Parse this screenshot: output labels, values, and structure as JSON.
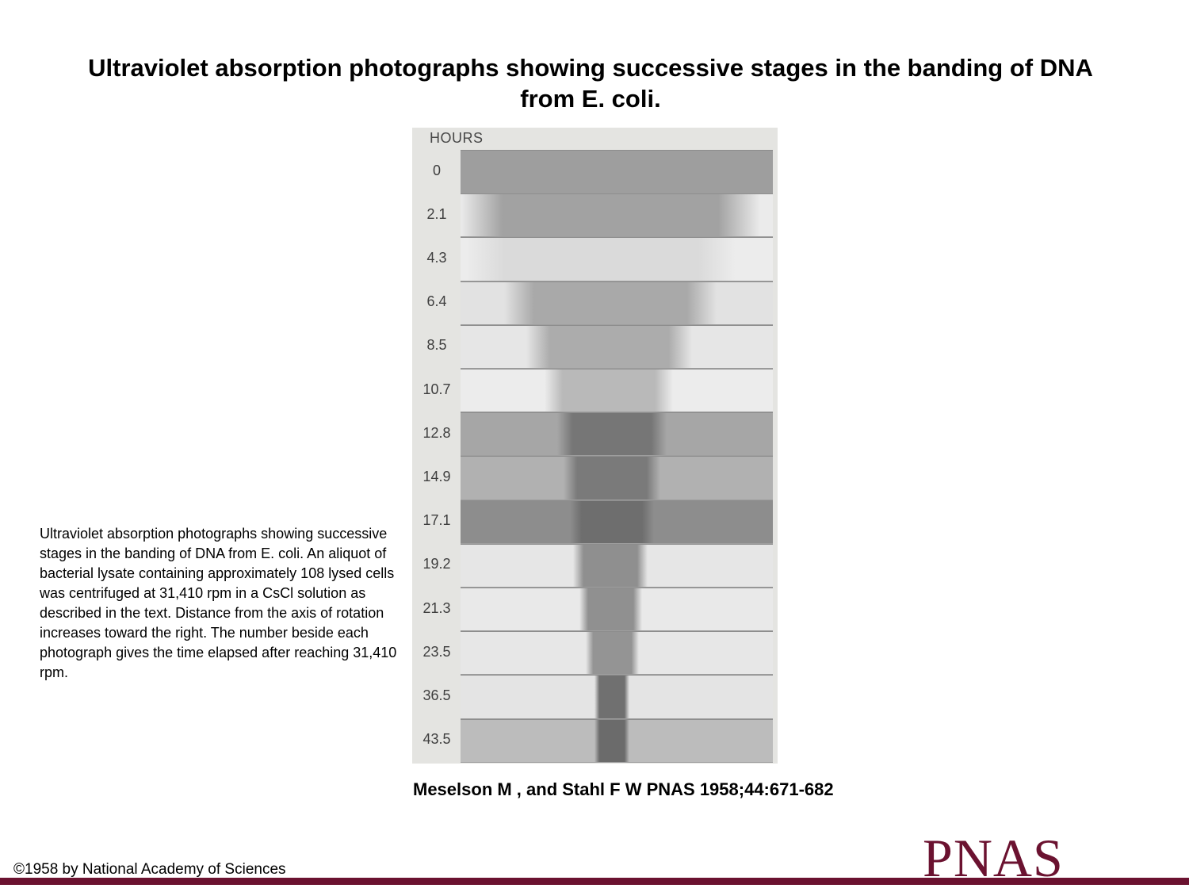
{
  "title": "Ultraviolet absorption photographs showing successive stages in the banding of DNA from E. coli.",
  "figure": {
    "header": "HOURS",
    "rows": [
      {
        "hours": "0",
        "shade": "#9e9e9e",
        "band_shade": "#9e9e9e",
        "band_start": 0.0,
        "band_end": 1.0
      },
      {
        "hours": "2.1",
        "shade": "#ebebeb",
        "band_shade": "#a2a2a2",
        "band_start": 0.0,
        "band_end": 0.96
      },
      {
        "hours": "4.3",
        "shade": "#ececec",
        "band_shade": "#dadada",
        "band_start": 0.02,
        "band_end": 0.88
      },
      {
        "hours": "6.4",
        "shade": "#e2e2e2",
        "band_shade": "#a9a9a9",
        "band_start": 0.14,
        "band_end": 0.82
      },
      {
        "hours": "8.5",
        "shade": "#e6e6e6",
        "band_shade": "#acacac",
        "band_start": 0.21,
        "band_end": 0.74
      },
      {
        "hours": "10.7",
        "shade": "#ececec",
        "band_shade": "#b9b9b9",
        "band_start": 0.27,
        "band_end": 0.68
      },
      {
        "hours": "12.8",
        "shade": "#a6a6a6",
        "band_shade": "#767676",
        "band_start": 0.31,
        "band_end": 0.66
      },
      {
        "hours": "14.9",
        "shade": "#b1b1b1",
        "band_shade": "#7a7a7a",
        "band_start": 0.33,
        "band_end": 0.64
      },
      {
        "hours": "17.1",
        "shade": "#8d8d8d",
        "band_shade": "#6e6e6e",
        "band_start": 0.35,
        "band_end": 0.62
      },
      {
        "hours": "19.2",
        "shade": "#e6e6e6",
        "band_shade": "#8f8f8f",
        "band_start": 0.36,
        "band_end": 0.6
      },
      {
        "hours": "21.3",
        "shade": "#e9e9e9",
        "band_shade": "#909090",
        "band_start": 0.38,
        "band_end": 0.58
      },
      {
        "hours": "23.5",
        "shade": "#e7e7e7",
        "band_shade": "#949494",
        "band_start": 0.4,
        "band_end": 0.57
      },
      {
        "hours": "36.5",
        "shade": "#e4e4e4",
        "band_shade": "#707070",
        "band_start": 0.43,
        "band_end": 0.54
      },
      {
        "hours": "43.5",
        "shade": "#bcbcbc",
        "band_shade": "#6b6b6b",
        "band_start": 0.43,
        "band_end": 0.54
      }
    ]
  },
  "caption": "Ultraviolet absorption photographs showing successive stages in the banding of DNA from E. coli. An aliquot of bacterial lysate containing approximately 108 lysed cells was centrifuged at 31,410 rpm in a CsCl solution as described in the text. Distance from the axis of rotation increases toward the right. The number beside each photograph gives the time elapsed after reaching 31,410 rpm.",
  "citation": "Meselson M , and Stahl F W PNAS 1958;44:671-682",
  "copyright": "©1958 by National Academy of Sciences",
  "logo_text": "PNAS",
  "colors": {
    "brand": "#6b1230",
    "background": "#ffffff"
  }
}
